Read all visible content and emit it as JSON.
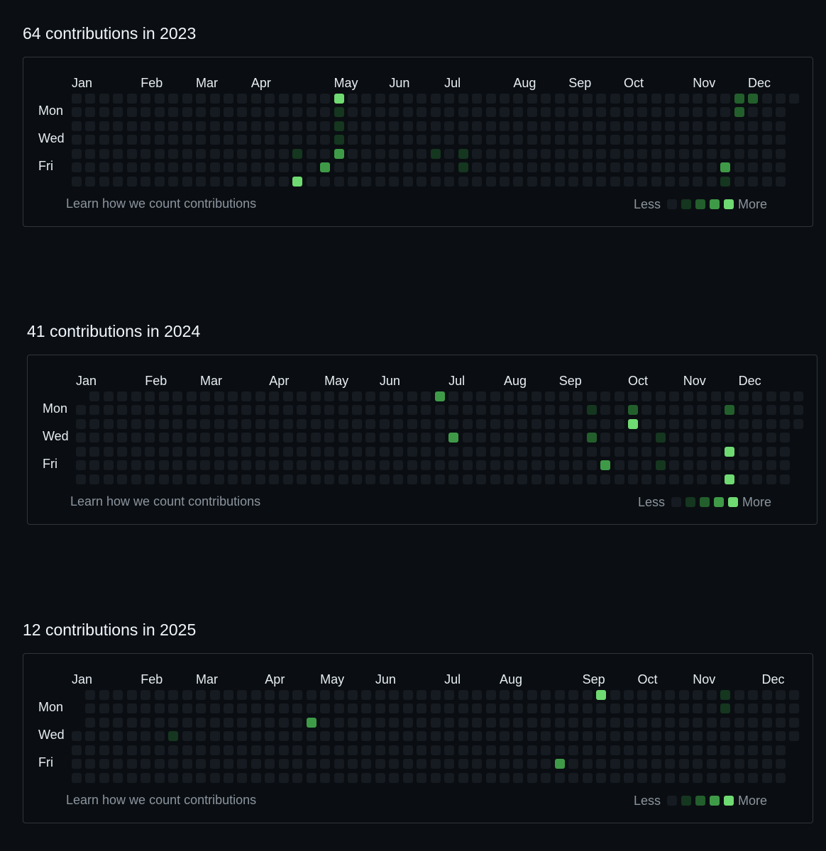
{
  "sections": [
    {
      "id": "y2023",
      "title": "64 contributions in 2023",
      "card_left": 32,
      "card_top": 34,
      "months": [
        "Jan",
        "Feb",
        "Mar",
        "Apr",
        "May",
        "Jun",
        "Jul",
        "Aug",
        "Sep",
        "Oct",
        "Nov",
        "Dec"
      ],
      "month_weeks": [
        0,
        5,
        9,
        13,
        19,
        23,
        27,
        32,
        36,
        40,
        45,
        49
      ],
      "first_col_start_day": 0,
      "total_weeks": 53,
      "last_col_end_day": 0,
      "active": [
        {
          "week": 19,
          "day": 0,
          "level": 4
        },
        {
          "week": 19,
          "day": 1,
          "level": 1
        },
        {
          "week": 19,
          "day": 2,
          "level": 1
        },
        {
          "week": 19,
          "day": 3,
          "level": 1
        },
        {
          "week": 19,
          "day": 4,
          "level": 3
        },
        {
          "week": 18,
          "day": 5,
          "level": 3
        },
        {
          "week": 16,
          "day": 4,
          "level": 1
        },
        {
          "week": 16,
          "day": 6,
          "level": 4
        },
        {
          "week": 26,
          "day": 4,
          "level": 1
        },
        {
          "week": 28,
          "day": 4,
          "level": 1
        },
        {
          "week": 28,
          "day": 5,
          "level": 1
        },
        {
          "week": 48,
          "day": 0,
          "level": 2
        },
        {
          "week": 49,
          "day": 0,
          "level": 2
        },
        {
          "week": 48,
          "day": 1,
          "level": 2
        },
        {
          "week": 47,
          "day": 5,
          "level": 3
        },
        {
          "week": 47,
          "day": 6,
          "level": 1
        }
      ]
    },
    {
      "id": "y2024",
      "title": "41 contributions in 2024",
      "card_left": 38,
      "card_top": 454,
      "months": [
        "Jan",
        "Feb",
        "Mar",
        "Apr",
        "May",
        "Jun",
        "Jul",
        "Aug",
        "Sep",
        "Oct",
        "Nov",
        "Dec"
      ],
      "month_weeks": [
        0,
        5,
        9,
        14,
        18,
        22,
        27,
        31,
        35,
        40,
        44,
        48
      ],
      "first_col_start_day": 1,
      "total_weeks": 53,
      "last_col_end_day": 2,
      "active": [
        {
          "week": 26,
          "day": 0,
          "level": 3
        },
        {
          "week": 37,
          "day": 1,
          "level": 1
        },
        {
          "week": 40,
          "day": 1,
          "level": 2
        },
        {
          "week": 40,
          "day": 2,
          "level": 4
        },
        {
          "week": 47,
          "day": 1,
          "level": 2
        },
        {
          "week": 27,
          "day": 3,
          "level": 3
        },
        {
          "week": 37,
          "day": 3,
          "level": 2
        },
        {
          "week": 42,
          "day": 3,
          "level": 1
        },
        {
          "week": 47,
          "day": 4,
          "level": 4
        },
        {
          "week": 38,
          "day": 5,
          "level": 3
        },
        {
          "week": 42,
          "day": 5,
          "level": 1
        },
        {
          "week": 47,
          "day": 6,
          "level": 4
        }
      ]
    },
    {
      "id": "y2025",
      "title": "12 contributions in 2025",
      "card_left": 32,
      "card_top": 875,
      "months": [
        "Jan",
        "Feb",
        "Mar",
        "Apr",
        "May",
        "Jun",
        "Jul",
        "Aug",
        "Sep",
        "Oct",
        "Nov",
        "Dec"
      ],
      "month_weeks": [
        0,
        5,
        9,
        14,
        18,
        22,
        27,
        31,
        37,
        41,
        45,
        50
      ],
      "first_col_start_day": 3,
      "total_weeks": 53,
      "last_col_end_day": 3,
      "active": [
        {
          "week": 38,
          "day": 0,
          "level": 4
        },
        {
          "week": 47,
          "day": 0,
          "level": 1
        },
        {
          "week": 47,
          "day": 1,
          "level": 1
        },
        {
          "week": 17,
          "day": 2,
          "level": 3
        },
        {
          "week": 7,
          "day": 3,
          "level": 1
        },
        {
          "week": 35,
          "day": 5,
          "level": 3
        }
      ]
    }
  ],
  "day_labels": [
    "Mon",
    "Wed",
    "Fri"
  ],
  "footer_link": "Learn how we count contributions",
  "legend": {
    "less": "Less",
    "more": "More"
  },
  "colors": {
    "level0": "#161b22",
    "level1": "#0e4429",
    "level2": "#006d32",
    "level3": "#26a641",
    "level4": "#39d353",
    "border": "#30363d",
    "muted_text": "#8b949e"
  }
}
